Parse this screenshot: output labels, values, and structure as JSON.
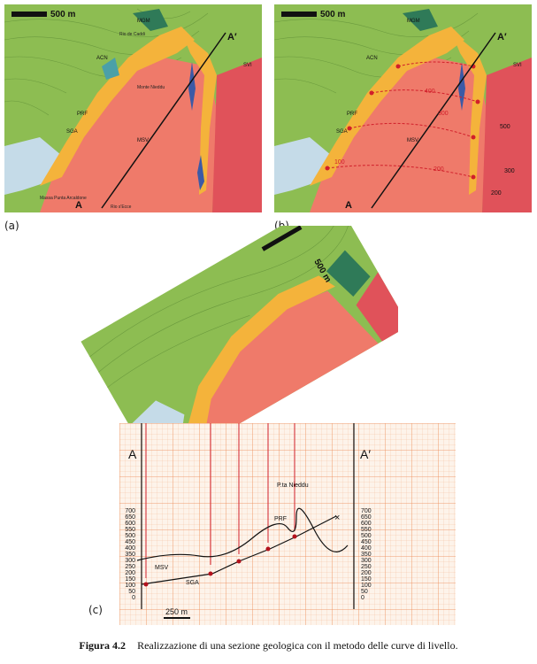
{
  "panels": {
    "a": {
      "label": "(a)",
      "scale_label": "500 m",
      "section_start": "A",
      "section_end": "A′",
      "units": [
        "MGM",
        "ACN",
        "PRF",
        "SGA",
        "MSV",
        "SVI"
      ],
      "place_names": [
        "Monte Nieddu",
        "Rio de Caddi",
        "Massa Punta Arcaldone",
        "Rio s'Ecce"
      ]
    },
    "b": {
      "label": "(b)",
      "scale_label": "500 m",
      "section_start": "A",
      "section_end": "A′",
      "units": [
        "MGM",
        "ACN",
        "PRF",
        "SGA",
        "MSV",
        "SVI"
      ],
      "contour_labels": [
        "400",
        "300",
        "200",
        "100",
        "500",
        "300",
        "200"
      ]
    },
    "c": {
      "label": "(c)",
      "scale_label": "500 m",
      "section_start": "A",
      "section_end": "A′",
      "map_contours": [
        "100",
        "200",
        "300",
        "400",
        "500",
        "500"
      ],
      "peak_label": "P.ta Nieddu",
      "profile_units": [
        "MSV",
        "SGA",
        "PRF"
      ],
      "axis_ticks": [
        "700",
        "650",
        "600",
        "550",
        "500",
        "450",
        "400",
        "350",
        "300",
        "250",
        "200",
        "150",
        "100",
        "50",
        "0"
      ],
      "bottom_scale": "250 m"
    }
  },
  "caption": {
    "number": "Figura 4.2",
    "text": "Realizzazione di una sezione geologica con il metodo delle curve di livello."
  }
}
